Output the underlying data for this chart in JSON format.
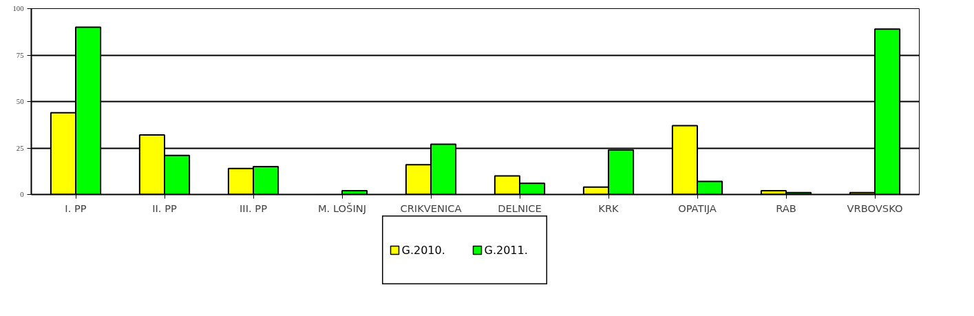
{
  "chart_data": {
    "type": "bar",
    "categories": [
      "I. PP",
      "II. PP",
      "III. PP",
      "M. LOŠINJ",
      "CRIKVENICA",
      "DELNICE",
      "KRK",
      "OPATIJA",
      "RAB",
      "VRBOVSKO"
    ],
    "series": [
      {
        "name": "G.2010.",
        "color": "#ffff00",
        "values": [
          44,
          32,
          14,
          0,
          16,
          10,
          4,
          37,
          2,
          1
        ]
      },
      {
        "name": "G.2011.",
        "color": "#00ff00",
        "values": [
          90,
          21,
          15,
          2,
          27,
          6,
          24,
          7,
          1,
          89
        ]
      }
    ],
    "ylim": [
      0,
      100
    ],
    "yticks": [
      0,
      25,
      50,
      75,
      100
    ],
    "grid": "y",
    "legend": "bottom"
  }
}
